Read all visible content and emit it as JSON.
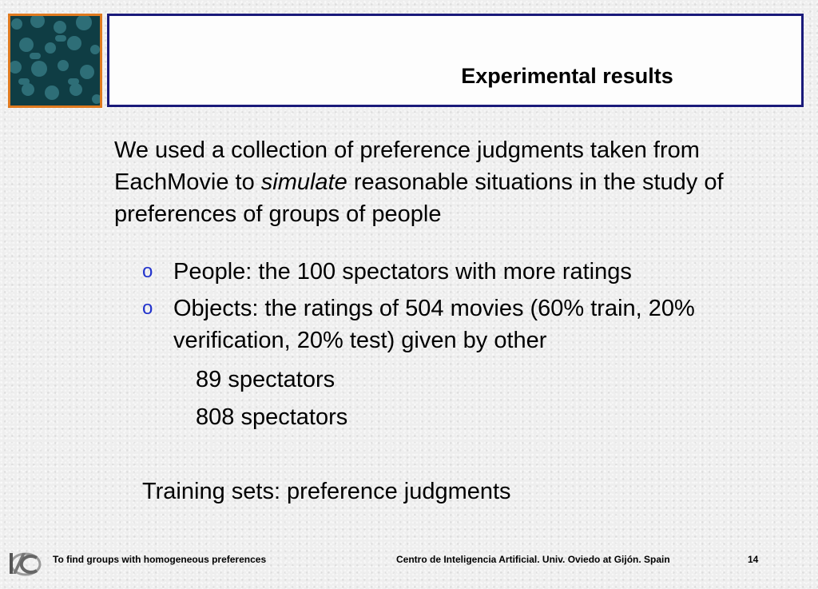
{
  "header": {
    "title": "Experimental results"
  },
  "intro": {
    "part1": "We used a collection of preference judgments taken from EachMovie to ",
    "emphasis": "simulate",
    "part2": " reasonable situations in the study of preferences of groups of people"
  },
  "bullets": [
    {
      "marker": "o",
      "text": "People: the 100 spectators with more ratings"
    },
    {
      "marker": "o",
      "text": "Objects: the ratings of 504 movies (60% train, 20% verification, 20% test) given by other"
    }
  ],
  "sub_items": [
    "89 spectators",
    "808 spectators"
  ],
  "training": "Training sets: preference judgments",
  "footer": {
    "left": "To find groups with homogeneous preferences",
    "right": "Centro de Inteligencia Artificial. Univ. Oviedo at Gijón. Spain",
    "page": "14"
  },
  "colors": {
    "title_border": "#1a1a7a",
    "logo_border": "#e07a1f",
    "bullet": "#2233cc",
    "logo_bg": "#0f3d44"
  }
}
